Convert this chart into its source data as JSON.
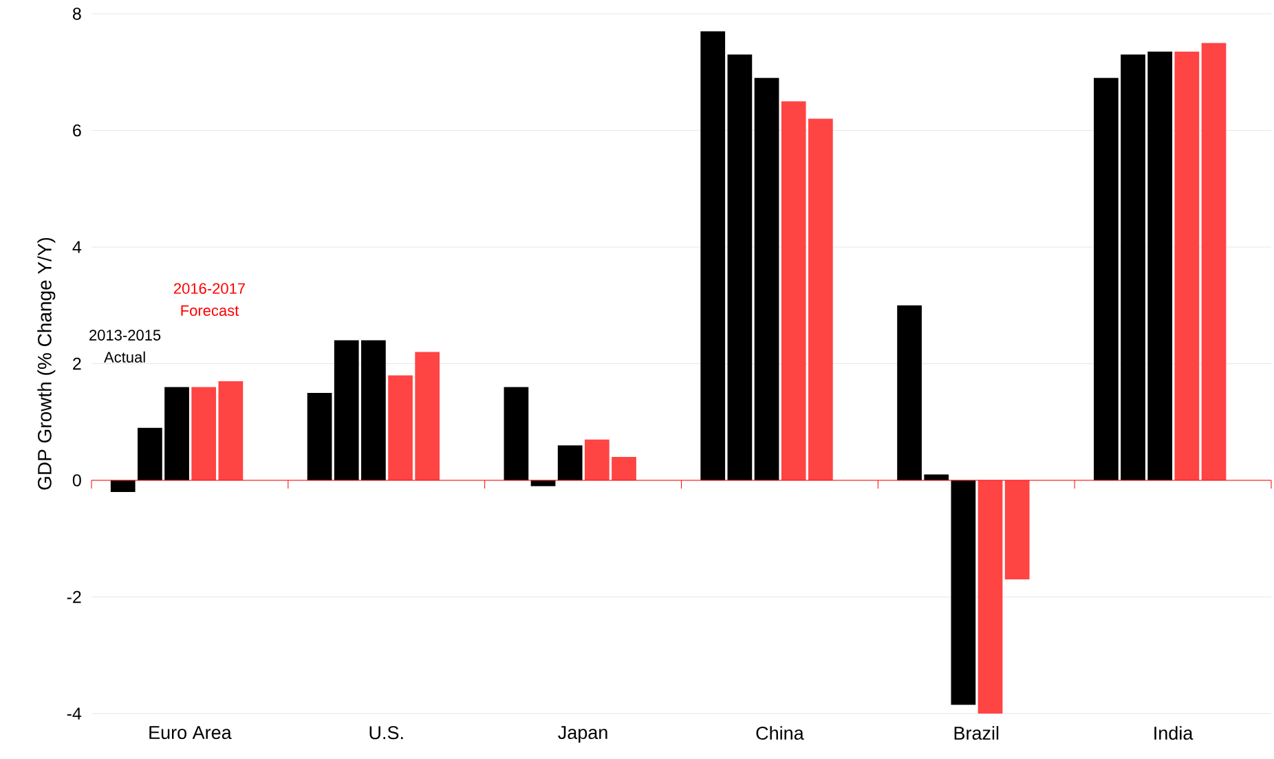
{
  "chart_data": {
    "type": "bar",
    "ylabel": "GDP Growth (% Change Y/Y)",
    "categories": [
      "Euro Area",
      "U.S.",
      "Japan",
      "China",
      "Brazil",
      "India"
    ],
    "series": [
      {
        "color": "#000000",
        "values": [
          -0.2,
          1.5,
          1.6,
          7.7,
          3.0,
          6.9
        ]
      },
      {
        "color": "#000000",
        "values": [
          0.9,
          2.4,
          -0.1,
          7.3,
          0.1,
          7.3
        ]
      },
      {
        "color": "#000000",
        "values": [
          1.6,
          2.4,
          0.6,
          6.9,
          -3.85,
          7.35
        ]
      },
      {
        "color": "#ff4444",
        "values": [
          1.6,
          1.8,
          0.7,
          6.5,
          -4.0,
          7.35
        ]
      },
      {
        "color": "#ff4444",
        "values": [
          1.7,
          2.2,
          0.4,
          6.2,
          -1.7,
          7.5
        ]
      }
    ],
    "ref_lines": [
      {
        "axis": "y",
        "value": 0,
        "color": "#ff0000"
      }
    ],
    "ylim": [
      -4,
      8
    ],
    "yticks": [
      -4,
      -2,
      0,
      2,
      4,
      6,
      8
    ],
    "grid": "y",
    "annotations": [
      "2013-2015 Actual",
      "2016-2017 Forecast"
    ]
  }
}
